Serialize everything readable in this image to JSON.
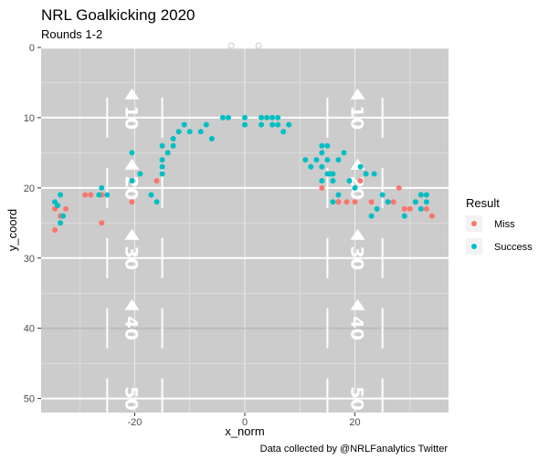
{
  "chart_data": {
    "type": "scatter",
    "title": "NRL Goalkicking 2020",
    "subtitle": "Rounds 1-2",
    "xlabel": "x_norm",
    "ylabel": "y_coord",
    "caption": "Data collected by @NRLFanalytics Twitter",
    "xlim": [
      -37,
      37
    ],
    "ylim": [
      0,
      52
    ],
    "y_reversed": true,
    "x_ticks": [
      -20,
      0,
      20
    ],
    "y_ticks": [
      0,
      10,
      20,
      30,
      40,
      50
    ],
    "x_tick_labels": [
      "-20",
      "0",
      "20"
    ],
    "y_tick_labels": [
      "0",
      "10",
      "20",
      "30",
      "40",
      "50"
    ],
    "grid": true,
    "legend": {
      "title": "Result",
      "placement": "right",
      "entries": [
        {
          "label": "Miss",
          "color": "#F8766D"
        },
        {
          "label": "Success",
          "color": "#00BFC4"
        }
      ]
    },
    "field_markings": [
      "10",
      "20",
      "30",
      "40",
      "50"
    ],
    "series": [
      {
        "name": "Miss",
        "color": "#F8766D",
        "points": [
          [
            -34.5,
            26
          ],
          [
            -33.5,
            24
          ],
          [
            -34.5,
            23
          ],
          [
            -32.5,
            23
          ],
          [
            -29,
            21
          ],
          [
            -28,
            21
          ],
          [
            -26,
            25
          ],
          [
            -26,
            21
          ],
          [
            -20.5,
            22
          ],
          [
            -20.5,
            19
          ],
          [
            -16,
            19
          ],
          [
            14,
            20
          ],
          [
            17,
            22
          ],
          [
            18.5,
            22
          ],
          [
            20,
            22
          ],
          [
            21,
            19
          ],
          [
            23,
            22
          ],
          [
            26,
            22
          ],
          [
            27,
            22
          ],
          [
            28,
            20
          ],
          [
            29,
            23
          ],
          [
            30,
            23
          ],
          [
            31,
            22
          ],
          [
            32,
            21
          ],
          [
            33,
            23
          ],
          [
            34,
            24
          ]
        ]
      },
      {
        "name": "Success",
        "color": "#00BFC4",
        "points": [
          [
            -34.5,
            22
          ],
          [
            -33.5,
            21
          ],
          [
            -33.5,
            25
          ],
          [
            -33,
            24
          ],
          [
            -34,
            22.5
          ],
          [
            -26,
            20
          ],
          [
            -25,
            21
          ],
          [
            -26.5,
            21
          ],
          [
            -20.5,
            15
          ],
          [
            -20.5,
            19
          ],
          [
            -19,
            18
          ],
          [
            -17,
            21
          ],
          [
            -16,
            22
          ],
          [
            -15,
            18
          ],
          [
            -15,
            17
          ],
          [
            -15,
            16
          ],
          [
            -15,
            14
          ],
          [
            -14,
            15
          ],
          [
            -13,
            14
          ],
          [
            -13,
            13
          ],
          [
            -12,
            12
          ],
          [
            -11,
            11
          ],
          [
            -10,
            12
          ],
          [
            -8,
            12
          ],
          [
            -7,
            11
          ],
          [
            -6,
            13
          ],
          [
            -4,
            10
          ],
          [
            -3,
            10
          ],
          [
            0,
            10
          ],
          [
            0,
            11
          ],
          [
            3,
            10
          ],
          [
            3,
            11
          ],
          [
            4,
            10
          ],
          [
            5,
            11
          ],
          [
            5,
            10
          ],
          [
            6,
            10
          ],
          [
            6,
            11
          ],
          [
            7,
            12
          ],
          [
            8,
            11
          ],
          [
            11,
            16
          ],
          [
            12,
            17
          ],
          [
            13,
            16
          ],
          [
            14,
            14
          ],
          [
            14,
            15
          ],
          [
            15,
            14
          ],
          [
            15,
            16
          ],
          [
            14,
            17
          ],
          [
            15,
            18
          ],
          [
            15.5,
            18
          ],
          [
            14,
            19
          ],
          [
            16,
            19
          ],
          [
            16,
            18
          ],
          [
            17,
            21
          ],
          [
            16,
            22
          ],
          [
            17,
            16
          ],
          [
            18,
            15
          ],
          [
            19,
            19
          ],
          [
            20,
            20
          ],
          [
            21,
            17
          ],
          [
            22,
            18
          ],
          [
            23,
            24
          ],
          [
            23.5,
            18
          ],
          [
            24,
            23
          ],
          [
            25,
            21
          ],
          [
            26,
            22
          ],
          [
            29,
            24
          ],
          [
            31,
            22
          ],
          [
            32,
            23
          ],
          [
            33,
            22
          ],
          [
            33,
            21
          ],
          [
            32,
            21
          ]
        ]
      }
    ]
  }
}
